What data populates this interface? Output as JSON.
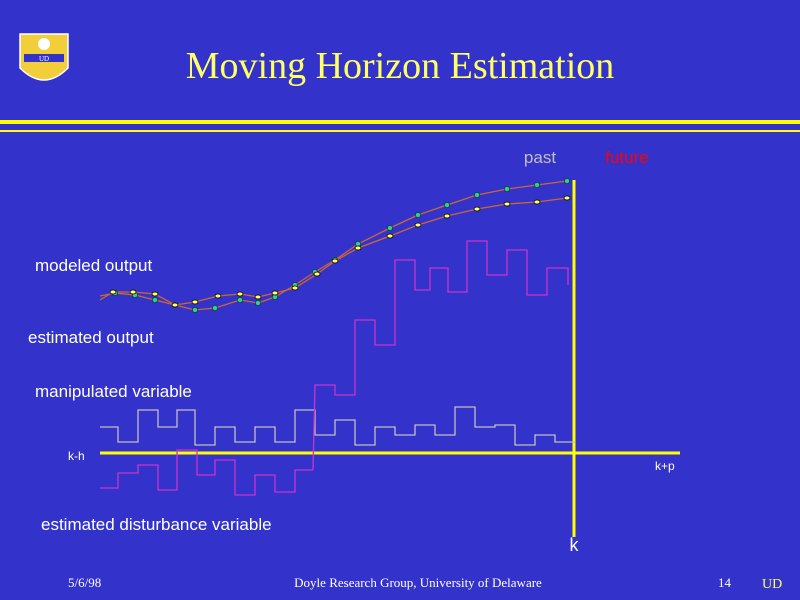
{
  "header": {
    "title": "Moving Horizon Estimation",
    "logo": "UD"
  },
  "diagram": {
    "past": "past",
    "future": "future",
    "modeled_output": "modeled output",
    "estimated_output": "estimated output",
    "manipulated_variable": "manipulated variable",
    "start": "k-h",
    "end": "k+p",
    "disturbance": "estimated disturbance variable",
    "now": "k"
  },
  "footer": {
    "date": "5/6/98",
    "credit": "Doyle Research Group, University of Delaware",
    "page": "14",
    "logo": "UD"
  }
}
